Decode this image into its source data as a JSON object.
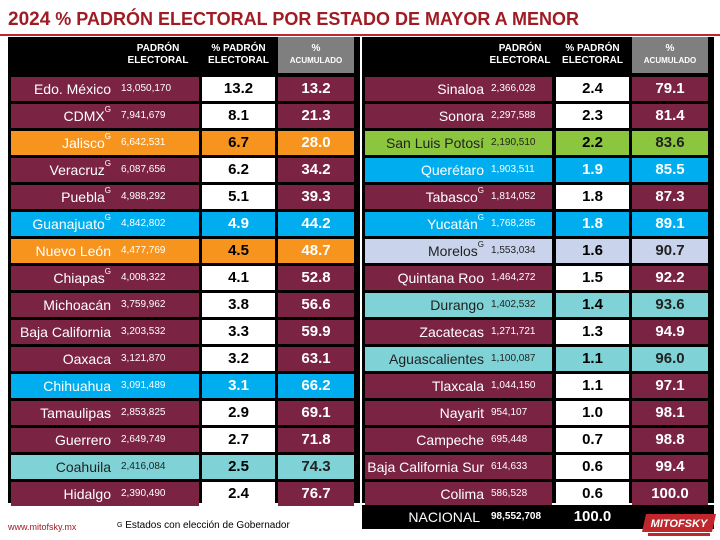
{
  "title": {
    "year": "2024",
    "text": "% PADRÓN ELECTORAL POR ESTADO DE MAYOR A MENOR"
  },
  "headers": {
    "padron_1": "PADRÓN",
    "padron_2": "ELECTORAL",
    "pct_1": "% PADRÓN",
    "pct_2": "ELECTORAL",
    "acc_1": "%",
    "acc_2": "ACUMULADO"
  },
  "colors": {
    "wine": "#7b2342",
    "orange": "#f7941d",
    "blue": "#00aeef",
    "teal": "#7fd3d6",
    "green": "#8cc63f",
    "lavender": "#c9d3ec",
    "gray": "#7f7f7f"
  },
  "chart_data": {
    "type": "table",
    "title": "% PADRÓN ELECTORAL POR ESTADO DE MAYOR A MENOR",
    "columns": [
      "",
      "PADRÓN ELECTORAL",
      "% PADRÓN ELECTORAL",
      "% ACUMULADO"
    ],
    "rows": [
      {
        "state": "Edo. México",
        "g": false,
        "padron": "13,050,170",
        "pct": "13.2",
        "acc": "13.2",
        "color": "wine"
      },
      {
        "state": "CDMX",
        "g": true,
        "padron": "7,941,679",
        "pct": "8.1",
        "acc": "21.3",
        "color": "wine"
      },
      {
        "state": "Jalisco",
        "g": true,
        "padron": "6,642,531",
        "pct": "6.7",
        "acc": "28.0",
        "color": "orange"
      },
      {
        "state": "Veracruz",
        "g": true,
        "padron": "6,087,656",
        "pct": "6.2",
        "acc": "34.2",
        "color": "wine"
      },
      {
        "state": "Puebla",
        "g": true,
        "padron": "4,988,292",
        "pct": "5.1",
        "acc": "39.3",
        "color": "wine"
      },
      {
        "state": "Guanajuato",
        "g": true,
        "padron": "4,842,802",
        "pct": "4.9",
        "acc": "44.2",
        "color": "blue"
      },
      {
        "state": "Nuevo León",
        "g": false,
        "padron": "4,477,769",
        "pct": "4.5",
        "acc": "48.7",
        "color": "orange"
      },
      {
        "state": "Chiapas",
        "g": true,
        "padron": "4,008,322",
        "pct": "4.1",
        "acc": "52.8",
        "color": "wine"
      },
      {
        "state": "Michoacán",
        "g": false,
        "padron": "3,759,962",
        "pct": "3.8",
        "acc": "56.6",
        "color": "wine"
      },
      {
        "state": "Baja California",
        "g": false,
        "padron": "3,203,532",
        "pct": "3.3",
        "acc": "59.9",
        "color": "wine"
      },
      {
        "state": "Oaxaca",
        "g": false,
        "padron": "3,121,870",
        "pct": "3.2",
        "acc": "63.1",
        "color": "wine"
      },
      {
        "state": "Chihuahua",
        "g": false,
        "padron": "3,091,489",
        "pct": "3.1",
        "acc": "66.2",
        "color": "blue"
      },
      {
        "state": "Tamaulipas",
        "g": false,
        "padron": "2,853,825",
        "pct": "2.9",
        "acc": "69.1",
        "color": "wine"
      },
      {
        "state": "Guerrero",
        "g": false,
        "padron": "2,649,749",
        "pct": "2.7",
        "acc": "71.8",
        "color": "wine"
      },
      {
        "state": "Coahuila",
        "g": false,
        "padron": "2,416,084",
        "pct": "2.5",
        "acc": "74.3",
        "color": "teal"
      },
      {
        "state": "Hidalgo",
        "g": false,
        "padron": "2,390,490",
        "pct": "2.4",
        "acc": "76.7",
        "color": "wine"
      },
      {
        "state": "Sinaloa",
        "g": false,
        "padron": "2,366,028",
        "pct": "2.4",
        "acc": "79.1",
        "color": "wine"
      },
      {
        "state": "Sonora",
        "g": false,
        "padron": "2,297,588",
        "pct": "2.3",
        "acc": "81.4",
        "color": "wine"
      },
      {
        "state": "San Luis Potosí",
        "g": false,
        "padron": "2,190,510",
        "pct": "2.2",
        "acc": "83.6",
        "color": "green"
      },
      {
        "state": "Querétaro",
        "g": false,
        "padron": "1,903,511",
        "pct": "1.9",
        "acc": "85.5",
        "color": "blue"
      },
      {
        "state": "Tabasco",
        "g": true,
        "padron": "1,814,052",
        "pct": "1.8",
        "acc": "87.3",
        "color": "wine"
      },
      {
        "state": "Yucatán",
        "g": true,
        "padron": "1,768,285",
        "pct": "1.8",
        "acc": "89.1",
        "color": "blue"
      },
      {
        "state": "Morelos",
        "g": true,
        "padron": "1,553,034",
        "pct": "1.6",
        "acc": "90.7",
        "color": "lavender"
      },
      {
        "state": "Quintana Roo",
        "g": false,
        "padron": "1,464,272",
        "pct": "1.5",
        "acc": "92.2",
        "color": "wine"
      },
      {
        "state": "Durango",
        "g": false,
        "padron": "1,402,532",
        "pct": "1.4",
        "acc": "93.6",
        "color": "teal"
      },
      {
        "state": "Zacatecas",
        "g": false,
        "padron": "1,271,721",
        "pct": "1.3",
        "acc": "94.9",
        "color": "wine"
      },
      {
        "state": "Aguascalientes",
        "g": false,
        "padron": "1,100,087",
        "pct": "1.1",
        "acc": "96.0",
        "color": "teal"
      },
      {
        "state": "Tlaxcala",
        "g": false,
        "padron": "1,044,150",
        "pct": "1.1",
        "acc": "97.1",
        "color": "wine"
      },
      {
        "state": "Nayarit",
        "g": false,
        "padron": "954,107",
        "pct": "1.0",
        "acc": "98.1",
        "color": "wine"
      },
      {
        "state": "Campeche",
        "g": false,
        "padron": "695,448",
        "pct": "0.7",
        "acc": "98.8",
        "color": "wine"
      },
      {
        "state": "Baja California Sur",
        "g": false,
        "padron": "614,633",
        "pct": "0.6",
        "acc": "99.4",
        "color": "wine"
      },
      {
        "state": "Colima",
        "g": false,
        "padron": "586,528",
        "pct": "0.6",
        "acc": "100.0",
        "color": "wine"
      }
    ],
    "total": {
      "label": "NACIONAL",
      "padron": "98,552,708",
      "pct": "100.0"
    }
  },
  "footer": {
    "url": "www.mitofsky.mx",
    "note_mark": "G",
    "note": "Estados con elección de Gobernador"
  },
  "logo": {
    "text": "MITOFSKY"
  }
}
